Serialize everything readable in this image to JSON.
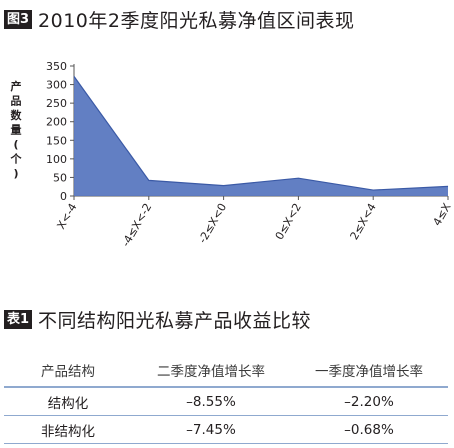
{
  "figure": {
    "tag": "图3",
    "title": "2010年2季度阳光私募净值区间表现"
  },
  "chart_data": {
    "type": "area",
    "categories": [
      "X<-4",
      "-4≤X<-2",
      "-2≤X<0",
      "0≤X<2",
      "2≤X<4",
      "4≤X"
    ],
    "series": [
      {
        "values": [
          322,
          42,
          28,
          48,
          16,
          26
        ]
      }
    ],
    "ylabel": "产品数量(个)",
    "ylim": [
      0,
      350
    ],
    "yticks": [
      0,
      50,
      100,
      150,
      200,
      250,
      300,
      350
    ],
    "ytick_labels": [
      "0",
      "50",
      "100",
      "150",
      "200",
      "250",
      "300",
      "350"
    ],
    "fill_color": "#5a78c0",
    "line_color": "#3b5aa6",
    "grid": false,
    "legend": "none"
  },
  "table": {
    "tag": "表1",
    "title": "不同结构阳光私募产品收益比较",
    "headers": [
      "产品结构",
      "二季度净值增长率",
      "一季度净值增长率"
    ],
    "rows": [
      [
        "结构化",
        "–8.55%",
        "–2.20%"
      ],
      [
        "非结构化",
        "–7.45%",
        "–0.68%"
      ]
    ],
    "rule_color": "#8fa9cf"
  }
}
